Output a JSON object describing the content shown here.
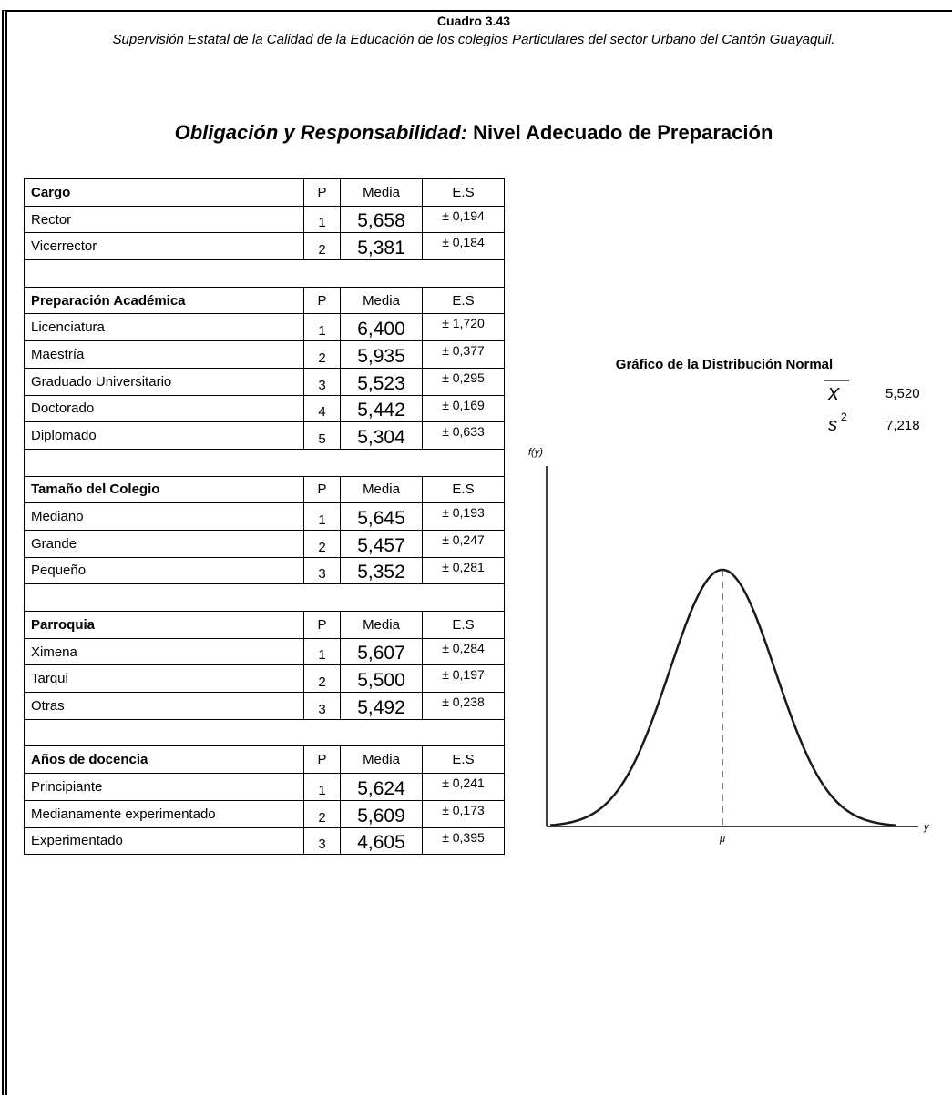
{
  "header": {
    "label": "Cuadro 3.43",
    "subtitle": "Supervisión Estatal de la Calidad de la Educación de los colegios Particulares del sector Urbano del Cantón Guayaquil.",
    "title_italic": "Obligación y Responsabilidad:",
    "title_rest": "Nivel Adecuado de Preparación"
  },
  "table": {
    "sections": [
      {
        "header": [
          "Cargo",
          "P",
          "Media",
          "E.S"
        ],
        "rows": [
          [
            "Rector",
            "1",
            "5,658",
            "± 0,194"
          ],
          [
            "Vicerrector",
            "2",
            "5,381",
            "± 0,184"
          ]
        ]
      },
      {
        "header": [
          "Preparación Académica",
          "P",
          "Media",
          "E.S"
        ],
        "rows": [
          [
            "Licenciatura",
            "1",
            "6,400",
            "± 1,720"
          ],
          [
            "Maestría",
            "2",
            "5,935",
            "± 0,377"
          ],
          [
            "Graduado Universitario",
            "3",
            "5,523",
            "± 0,295"
          ],
          [
            "Doctorado",
            "4",
            "5,442",
            "± 0,169"
          ],
          [
            "Diplomado",
            "5",
            "5,304",
            "± 0,633"
          ]
        ]
      },
      {
        "header": [
          "Tamaño del Colegio",
          "P",
          "Media",
          "E.S"
        ],
        "rows": [
          [
            "Mediano",
            "1",
            "5,645",
            "± 0,193"
          ],
          [
            "Grande",
            "2",
            "5,457",
            "± 0,247"
          ],
          [
            "Pequeño",
            "3",
            "5,352",
            "± 0,281"
          ]
        ]
      },
      {
        "header": [
          "Parroquia",
          "P",
          "Media",
          "E.S"
        ],
        "rows": [
          [
            "Ximena",
            "1",
            "5,607",
            "± 0,284"
          ],
          [
            "Tarqui",
            "2",
            "5,500",
            "± 0,197"
          ],
          [
            "Otras",
            "3",
            "5,492",
            "± 0,238"
          ]
        ]
      },
      {
        "header": [
          "Años de docencia",
          "P",
          "Media",
          "E.S"
        ],
        "rows": [
          [
            "Principiante",
            "1",
            "5,624",
            "± 0,241"
          ],
          [
            "Medianamente experimentado",
            "2",
            "5,609",
            "± 0,173"
          ],
          [
            "Experimentado",
            "3",
            "4,605",
            "± 0,395"
          ]
        ]
      }
    ]
  },
  "graph": {
    "title": "Gráfico de la Distribución Normal",
    "stats": [
      {
        "symbol": "X",
        "value": "5,520"
      },
      {
        "symbol": "s",
        "sup": "2",
        "value": "7,218"
      }
    ],
    "y_axis": "f(y)",
    "x_axis": "y",
    "mu": "μ"
  }
}
